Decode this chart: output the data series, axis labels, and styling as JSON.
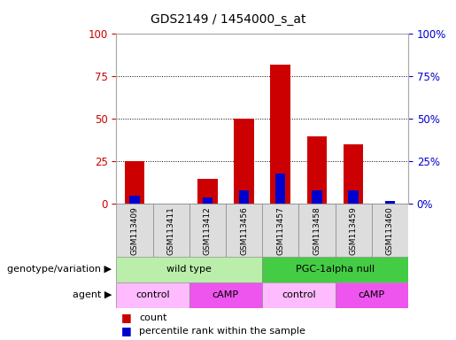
{
  "title": "GDS2149 / 1454000_s_at",
  "samples": [
    "GSM113409",
    "GSM113411",
    "GSM113412",
    "GSM113456",
    "GSM113457",
    "GSM113458",
    "GSM113459",
    "GSM113460"
  ],
  "count_values": [
    25,
    0,
    15,
    50,
    82,
    40,
    35,
    0
  ],
  "percentile_values": [
    5,
    0,
    4,
    8,
    18,
    8,
    8,
    2
  ],
  "bar_color": "#cc0000",
  "percentile_color": "#0000cc",
  "ylim": [
    0,
    100
  ],
  "yticks": [
    0,
    25,
    50,
    75,
    100
  ],
  "genotype_groups": [
    {
      "label": "wild type",
      "start": 0,
      "end": 4,
      "color": "#bbeeaa"
    },
    {
      "label": "PGC-1alpha null",
      "start": 4,
      "end": 8,
      "color": "#44cc44"
    }
  ],
  "agent_groups": [
    {
      "label": "control",
      "start": 0,
      "end": 2,
      "color": "#ffbbff"
    },
    {
      "label": "cAMP",
      "start": 2,
      "end": 4,
      "color": "#ee55ee"
    },
    {
      "label": "control",
      "start": 4,
      "end": 6,
      "color": "#ffbbff"
    },
    {
      "label": "cAMP",
      "start": 6,
      "end": 8,
      "color": "#ee55ee"
    }
  ],
  "legend_count_label": "count",
  "legend_percentile_label": "percentile rank within the sample",
  "genotype_label": "genotype/variation",
  "agent_label": "agent",
  "background_color": "#ffffff",
  "tick_color_left": "#cc0000",
  "tick_color_right": "#0000cc",
  "sample_box_color": "#dddddd",
  "arrow_color": "#777777"
}
